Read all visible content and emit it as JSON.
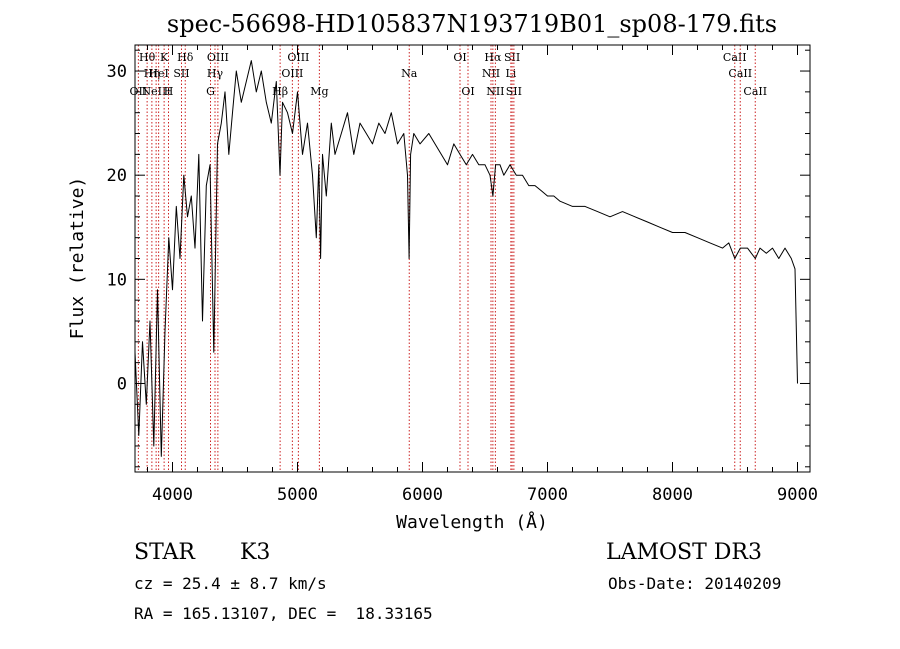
{
  "chart_data": {
    "type": "line",
    "title": "spec-56698-HD105837N193719B01_sp08-179.fits",
    "xlabel": "Wavelength (Å)",
    "ylabel": "Flux (relative)",
    "xlim": [
      3700,
      9100
    ],
    "ylim": [
      -8.5,
      32.5
    ],
    "xticks": [
      4000,
      5000,
      6000,
      7000,
      8000,
      9000
    ],
    "yticks": [
      0,
      10,
      20,
      30
    ],
    "x_minor_step": 200,
    "y_minor_step": 2,
    "series": [
      {
        "name": "spectrum",
        "x": [
          3700,
          3730,
          3760,
          3790,
          3820,
          3850,
          3880,
          3910,
          3940,
          3970,
          4000,
          4030,
          4060,
          4090,
          4120,
          4150,
          4180,
          4210,
          4240,
          4270,
          4300,
          4330,
          4360,
          4390,
          4420,
          4450,
          4480,
          4510,
          4550,
          4590,
          4630,
          4670,
          4710,
          4750,
          4790,
          4830,
          4860,
          4880,
          4920,
          4960,
          5000,
          5040,
          5080,
          5120,
          5150,
          5170,
          5185,
          5200,
          5230,
          5270,
          5300,
          5350,
          5400,
          5450,
          5500,
          5550,
          5600,
          5650,
          5700,
          5750,
          5800,
          5850,
          5880,
          5893,
          5905,
          5930,
          5980,
          6050,
          6100,
          6150,
          6200,
          6250,
          6300,
          6350,
          6400,
          6450,
          6500,
          6540,
          6563,
          6585,
          6620,
          6650,
          6700,
          6750,
          6800,
          6850,
          6900,
          6950,
          7000,
          7050,
          7100,
          7200,
          7300,
          7400,
          7500,
          7600,
          7700,
          7800,
          7900,
          8000,
          8100,
          8200,
          8300,
          8400,
          8450,
          8498,
          8542,
          8600,
          8662,
          8700,
          8750,
          8800,
          8850,
          8900,
          8950,
          8980,
          9000
        ],
        "y": [
          3,
          -5,
          4,
          -2,
          6,
          -6,
          9,
          -7,
          5,
          14,
          9,
          17,
          12,
          20,
          16,
          18,
          13,
          22,
          6,
          19,
          21,
          3,
          23,
          25,
          28,
          22,
          26,
          30,
          27,
          29,
          31,
          28,
          30,
          27,
          25,
          29,
          20,
          27,
          26,
          24,
          28,
          22,
          25,
          20,
          14,
          21,
          12,
          22,
          18,
          25,
          22,
          24,
          26,
          22,
          25,
          24,
          23,
          25,
          24,
          26,
          23,
          24,
          20,
          12,
          22,
          24,
          23,
          24,
          23,
          22,
          21,
          23,
          22,
          21,
          22,
          21,
          21,
          20,
          18,
          21,
          21,
          20,
          21,
          20,
          20,
          19,
          19,
          18.5,
          18,
          18,
          17.5,
          17,
          17,
          16.5,
          16,
          16.5,
          16,
          15.5,
          15,
          14.5,
          14.5,
          14,
          13.5,
          13,
          13.5,
          12,
          13,
          13,
          12,
          13,
          12.5,
          13,
          12,
          13,
          12,
          11,
          0
        ]
      }
    ],
    "emission_lines": [
      {
        "wavelength": 3727,
        "row": 3,
        "label": "OII"
      },
      {
        "wavelength": 3797,
        "row": 1,
        "label": "Hθ"
      },
      {
        "wavelength": 3835,
        "row": 2,
        "label": "Hη"
      },
      {
        "wavelength": 3869,
        "row": 3,
        "label": "NeIII"
      },
      {
        "wavelength": 3889,
        "row": 2,
        "label": "HeI"
      },
      {
        "wavelength": 3933,
        "row": 1,
        "label": "K"
      },
      {
        "wavelength": 3968,
        "row": 3,
        "label": "H"
      },
      {
        "wavelength": 4072,
        "row": 2,
        "label": "SII"
      },
      {
        "wavelength": 4102,
        "row": 1,
        "label": "Hδ"
      },
      {
        "wavelength": 4304,
        "row": 3,
        "label": "G"
      },
      {
        "wavelength": 4340,
        "row": 2,
        "label": "Hγ"
      },
      {
        "wavelength": 4363,
        "row": 1,
        "label": "OIII"
      },
      {
        "wavelength": 4861,
        "row": 3,
        "label": "Hβ"
      },
      {
        "wavelength": 4959,
        "row": 2,
        "label": "OIII"
      },
      {
        "wavelength": 5007,
        "row": 1,
        "label": "OIII"
      },
      {
        "wavelength": 5175,
        "row": 3,
        "label": "Mg"
      },
      {
        "wavelength": 5894,
        "row": 2,
        "label": "Na"
      },
      {
        "wavelength": 6300,
        "row": 1,
        "label": "OI"
      },
      {
        "wavelength": 6364,
        "row": 3,
        "label": "OI"
      },
      {
        "wavelength": 6548,
        "row": 2,
        "label": "NII"
      },
      {
        "wavelength": 6563,
        "row": 1,
        "label": "Hα"
      },
      {
        "wavelength": 6583,
        "row": 3,
        "label": "NII"
      },
      {
        "wavelength": 6707,
        "row": 2,
        "label": "Li"
      },
      {
        "wavelength": 6717,
        "row": 1,
        "label": "SII"
      },
      {
        "wavelength": 6731,
        "row": 3,
        "label": "SII"
      },
      {
        "wavelength": 8498,
        "row": 1,
        "label": "CaII"
      },
      {
        "wavelength": 8542,
        "row": 2,
        "label": "CaII"
      },
      {
        "wavelength": 8662,
        "row": 3,
        "label": "CaII"
      }
    ],
    "colors": {
      "line": "#000000",
      "markers": "#cc2222",
      "axes": "#000000"
    }
  },
  "info": {
    "object_class": "STAR",
    "subclass": "K3",
    "survey": "LAMOST DR3",
    "cz": "cz = 25.4 ± 8.7 km/s",
    "obs_date": "Obs-Date: 20140209",
    "coords": "RA = 165.13107, DEC =  18.33165"
  }
}
